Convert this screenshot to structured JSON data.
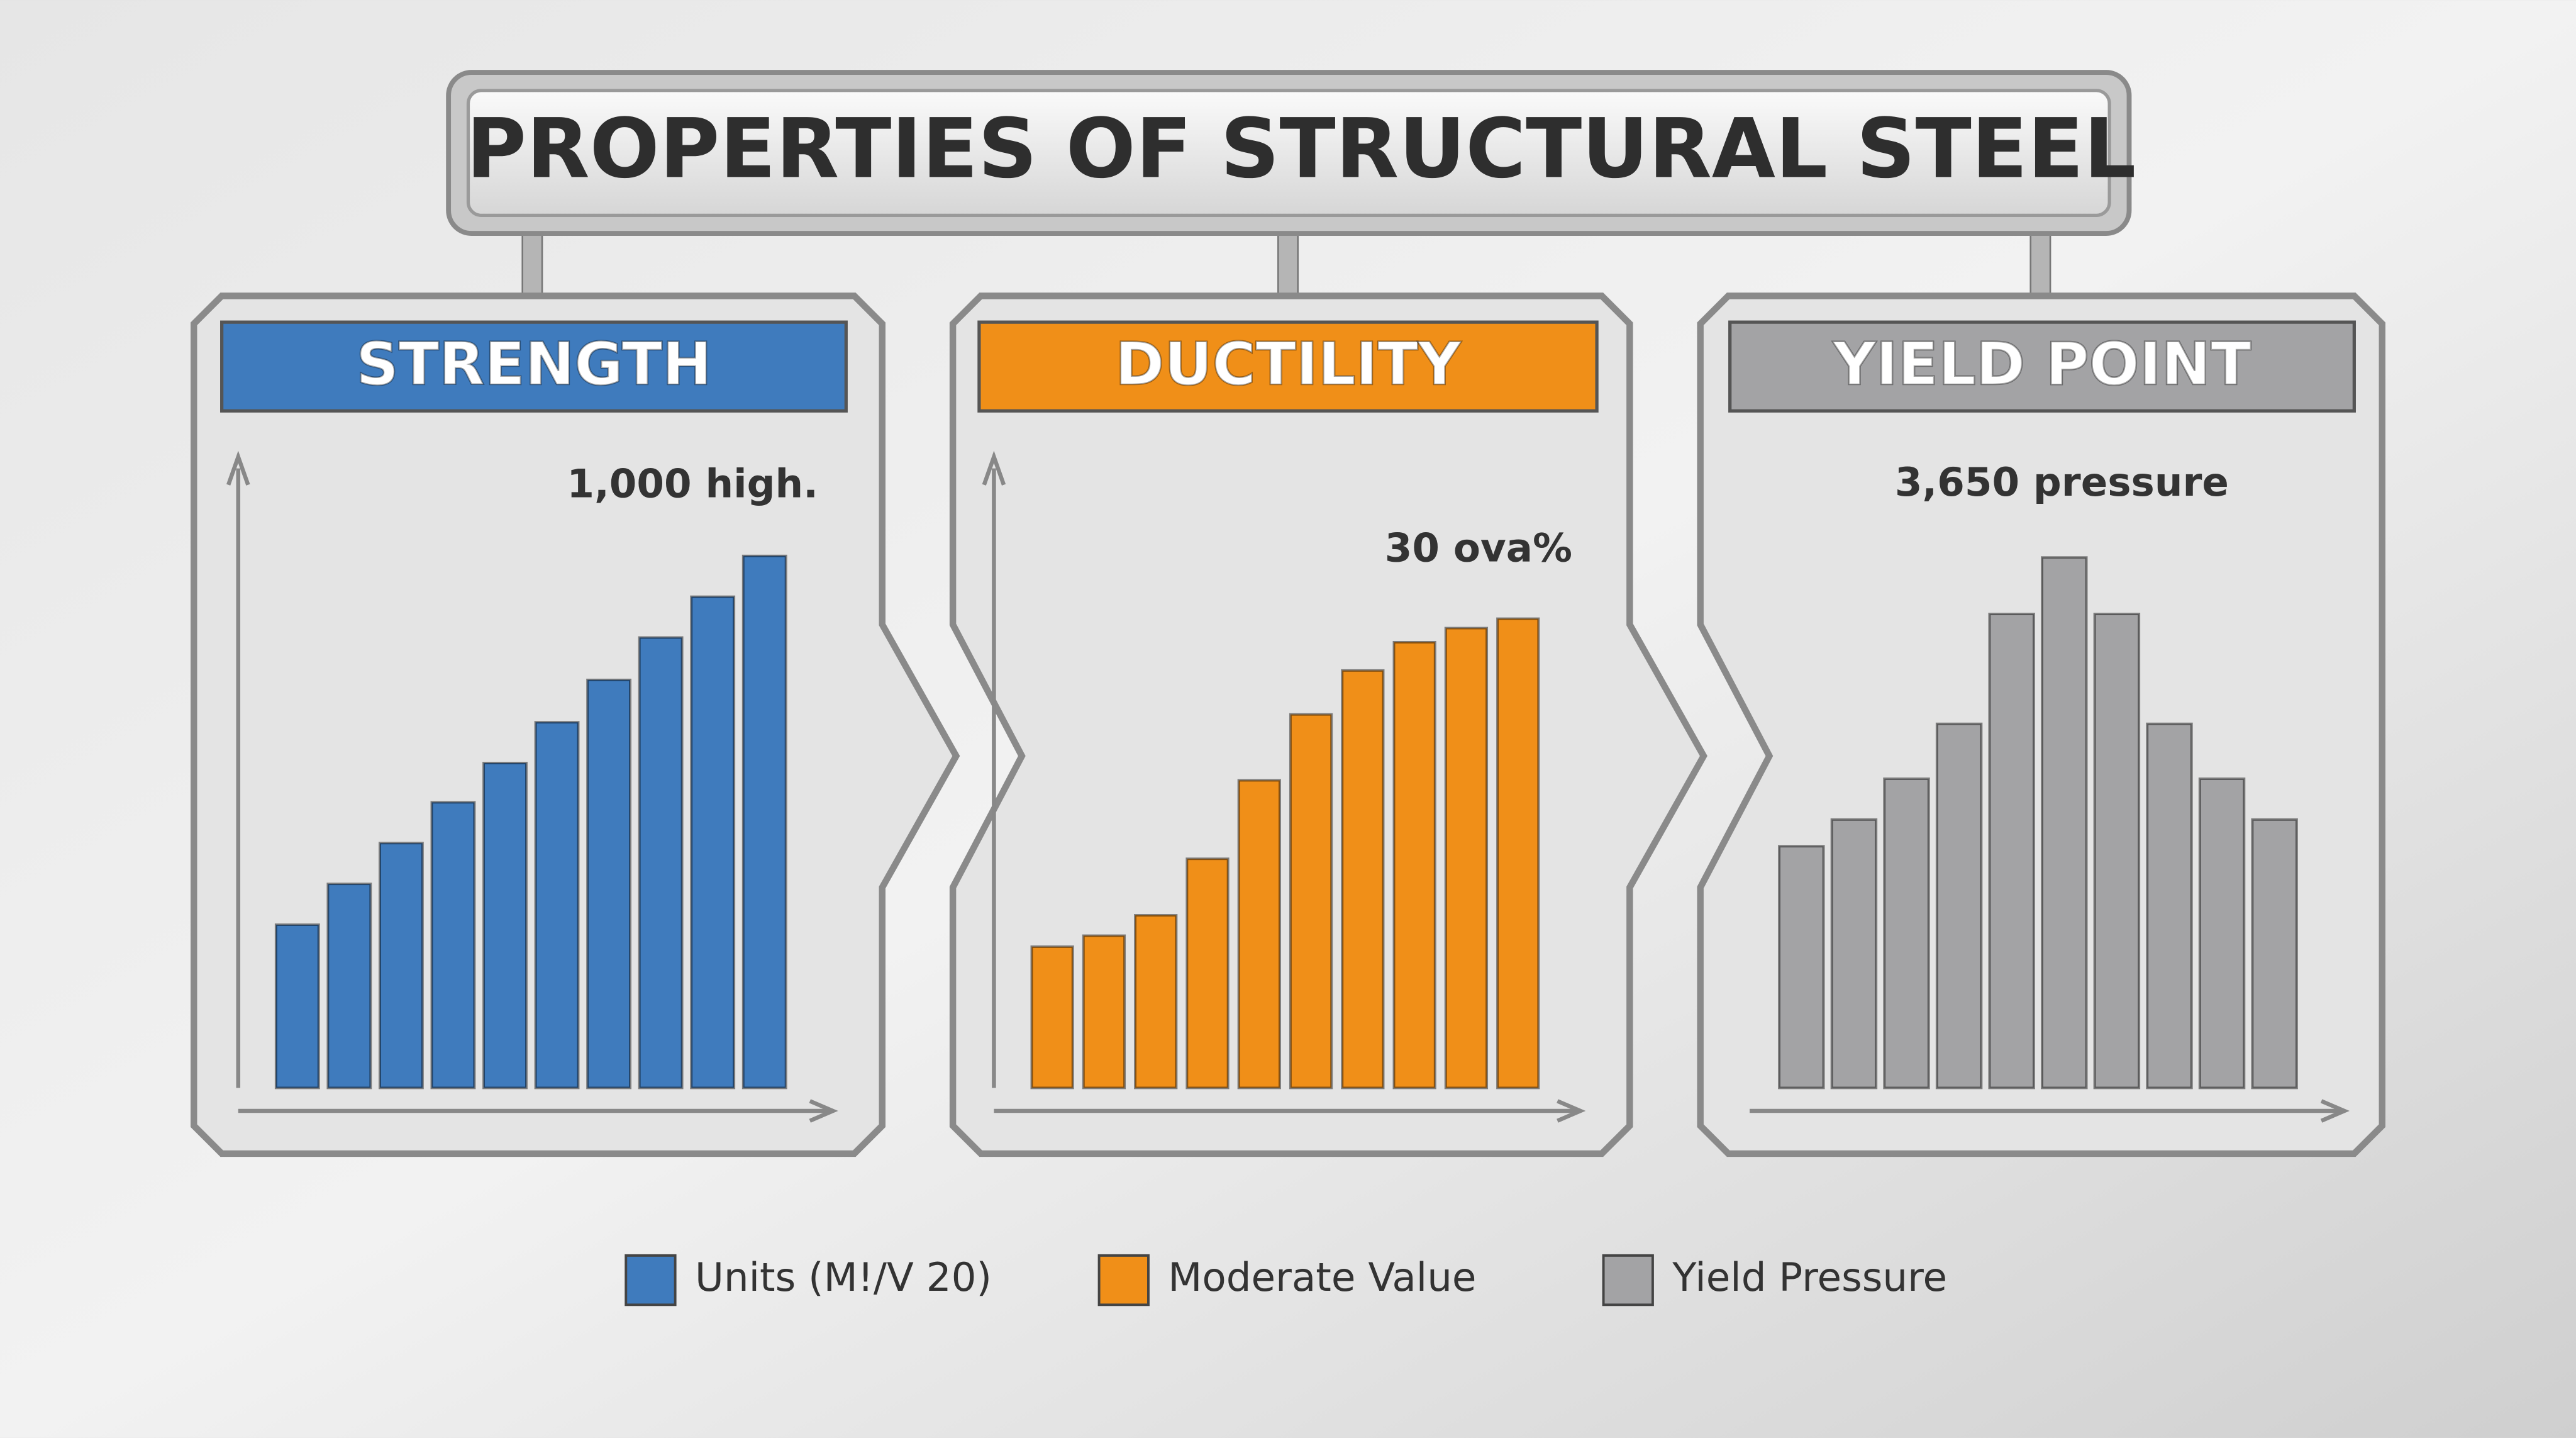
{
  "title": "PROPERTIES OF STRUCTURAL STEEL",
  "chart_data": [
    {
      "type": "bar",
      "title": "STRENGTH",
      "annotation": "1,000 high.",
      "series": [
        {
          "name": "Units (M!/V 20)",
          "color": "#3f7bbd",
          "values": [
            104,
            130,
            156,
            182,
            207,
            233,
            260,
            287,
            313,
            339
          ]
        }
      ],
      "ylim": [
        0,
        400
      ]
    },
    {
      "type": "bar",
      "title": "DUCTILITY",
      "annotation": "30 ova%",
      "series": [
        {
          "name": "Moderate Value",
          "color": "#f08f18",
          "values": [
            90,
            97,
            110,
            146,
            196,
            238,
            266,
            284,
            293,
            299
          ]
        }
      ],
      "ylim": [
        0,
        400
      ]
    },
    {
      "type": "bar",
      "title": "YIELD POINT",
      "annotation": "3,650 pressure",
      "series": [
        {
          "name": "Yield Pressure",
          "color": "#a3a3a5",
          "values": [
            154,
            171,
            197,
            232,
            302,
            338,
            302,
            232,
            197,
            171
          ]
        }
      ],
      "ylim": [
        0,
        400
      ]
    }
  ]
}
